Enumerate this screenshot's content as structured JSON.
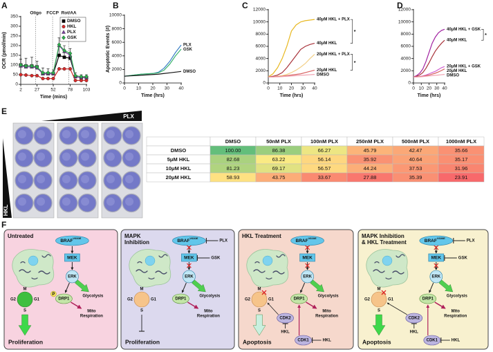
{
  "panel_labels": [
    "A",
    "B",
    "C",
    "D",
    "E",
    "F"
  ],
  "chart_data": [
    {
      "type": "line",
      "xlabel": "Time (mins)",
      "ylabel": "OCR (pmol/min)",
      "x": [
        2,
        10,
        19,
        27,
        36,
        44,
        52,
        61,
        69,
        78,
        86,
        95,
        103
      ],
      "xlim": [
        2,
        103
      ],
      "xticks": [
        2,
        27,
        52,
        78,
        103
      ],
      "ylim": [
        0,
        350
      ],
      "yticks": [
        0,
        50,
        100,
        150,
        200,
        250,
        300,
        350
      ],
      "legend": "top-right",
      "injections": [
        {
          "text": "Oligo",
          "x": 25
        },
        {
          "text": "FCCP",
          "x": 51
        },
        {
          "text": "Rot/AA",
          "x": 76
        }
      ],
      "series": [
        {
          "name": "DMSO",
          "color": "#000000",
          "marker": "square",
          "values": [
            100,
            95,
            95,
            90,
            55,
            55,
            55,
            150,
            140,
            135,
            40,
            35,
            35
          ],
          "errors": [
            30,
            40,
            45,
            30,
            30,
            25,
            20,
            90,
            60,
            50,
            20,
            15,
            15
          ]
        },
        {
          "name": "HKL",
          "color": "#d42a2a",
          "marker": "circle",
          "values": [
            50,
            48,
            45,
            45,
            30,
            30,
            30,
            80,
            80,
            80,
            20,
            20,
            20
          ]
        },
        {
          "name": "PLX",
          "color": "#7b3fa0",
          "marker": "triangle",
          "values": [
            95,
            90,
            90,
            85,
            55,
            55,
            55,
            200,
            170,
            150,
            40,
            35,
            35
          ]
        },
        {
          "name": "GSK",
          "color": "#2fae4e",
          "marker": "diamond",
          "values": [
            100,
            95,
            95,
            90,
            60,
            60,
            60,
            205,
            175,
            160,
            45,
            40,
            40
          ]
        }
      ]
    },
    {
      "type": "line",
      "xlabel": "Time (hrs)",
      "ylabel": "Apoptotic Events (#)",
      "x": [
        0,
        4,
        8,
        12,
        16,
        20,
        24,
        28,
        32,
        36,
        40
      ],
      "xlim": [
        0,
        40
      ],
      "xticks": [
        0,
        10,
        20,
        30,
        40
      ],
      "ylim": [
        0,
        10000
      ],
      "yticks": [
        0,
        2000,
        4000,
        6000,
        8000,
        10000
      ],
      "legend": "line-end",
      "series": [
        {
          "name": "PLX",
          "color": "#3a7fc4",
          "values": [
            1000,
            1100,
            1200,
            1300,
            1350,
            1400,
            1600,
            2200,
            3200,
            4500,
            5600
          ]
        },
        {
          "name": "GSK",
          "color": "#3bb36b",
          "values": [
            1000,
            1100,
            1200,
            1300,
            1350,
            1400,
            1500,
            1900,
            2800,
            4000,
            5000
          ]
        },
        {
          "name": "DMSO",
          "color": "#111111",
          "values": [
            1000,
            1050,
            1100,
            1150,
            1200,
            1250,
            1300,
            1400,
            1500,
            1600,
            1700
          ]
        }
      ]
    },
    {
      "type": "line",
      "xlabel": "Time (hrs)",
      "x": [
        0,
        4,
        8,
        12,
        16,
        20,
        24,
        28,
        32,
        36,
        40
      ],
      "xlim": [
        0,
        40
      ],
      "xticks": [
        0,
        10,
        20,
        30,
        40
      ],
      "ylim": [
        0,
        12000
      ],
      "yticks": [
        0,
        2000,
        4000,
        6000,
        8000,
        10000,
        12000
      ],
      "legend": "line-end",
      "annotations": [
        "*",
        "*"
      ],
      "series": [
        {
          "name": "40μM HKL + PLX",
          "color": "#e8b820",
          "values": [
            1000,
            1500,
            2500,
            4000,
            6000,
            8500,
            9500,
            10000,
            10200,
            10300,
            10400
          ]
        },
        {
          "name": "40μM HKL",
          "color": "#a8323a",
          "values": [
            1000,
            1100,
            1300,
            1700,
            2500,
            3500,
            4500,
            5500,
            6000,
            6300,
            6500
          ]
        },
        {
          "name": "20μM HKL + PLX",
          "color": "#f3cf86",
          "values": [
            1000,
            1000,
            1100,
            1200,
            1400,
            1700,
            2100,
            2600,
            3200,
            4000,
            4700
          ]
        },
        {
          "name": "20μM HKL",
          "color": "#d86060",
          "values": [
            1000,
            1000,
            1050,
            1100,
            1200,
            1300,
            1400,
            1500,
            1700,
            1900,
            2100
          ]
        },
        {
          "name": "DMSO",
          "color": "#f0a0b0",
          "values": [
            1000,
            1000,
            1000,
            1050,
            1100,
            1150,
            1200,
            1250,
            1300,
            1350,
            1400
          ]
        }
      ]
    },
    {
      "type": "line",
      "xlabel": "Time (hrs)",
      "x": [
        0,
        4,
        8,
        12,
        16,
        20,
        24,
        28,
        32,
        36,
        40
      ],
      "xlim": [
        0,
        40
      ],
      "xticks": [
        0,
        10,
        20,
        30,
        40
      ],
      "ylim": [
        0,
        12000
      ],
      "yticks": [
        0,
        2000,
        4000,
        6000,
        8000,
        10000,
        12000
      ],
      "legend": "line-end",
      "annotations": [
        "*"
      ],
      "series": [
        {
          "name": "40μM HKL + GSK",
          "color": "#a020a0",
          "values": [
            1000,
            1200,
            1600,
            2300,
            3500,
            5000,
            6500,
            7500,
            8200,
            8600,
            8800
          ]
        },
        {
          "name": "40μM HKL",
          "color": "#a8323a",
          "values": [
            1000,
            1100,
            1300,
            1700,
            2400,
            3300,
            4300,
            5200,
            5900,
            6500,
            7000
          ]
        },
        {
          "name": "20μM HKL + GSK",
          "color": "#d060d0",
          "values": [
            1000,
            1000,
            1050,
            1150,
            1300,
            1500,
            1700,
            1900,
            2200,
            2500,
            2700
          ]
        },
        {
          "name": "20μM HKL",
          "color": "#d86060",
          "values": [
            1000,
            1000,
            1050,
            1100,
            1200,
            1300,
            1450,
            1600,
            1800,
            2050,
            2300
          ]
        },
        {
          "name": "DMSO",
          "color": "#f0a0b0",
          "values": [
            1000,
            1000,
            1000,
            1050,
            1100,
            1150,
            1200,
            1250,
            1300,
            1350,
            1400
          ]
        }
      ]
    }
  ],
  "plate": {
    "top_label": "PLX",
    "side_label": "HKL"
  },
  "table": {
    "columns": [
      "DMSO",
      "50nM PLX",
      "100nM PLX",
      "250nM PLX",
      "500nM PLX",
      "1000nM PLX"
    ],
    "rows": [
      {
        "label": "DMSO",
        "cells": [
          "100.00",
          "86.38",
          "66.27",
          "45.79",
          "42.47",
          "35.66"
        ]
      },
      {
        "label": "5μM HKL",
        "cells": [
          "82.68",
          "63.22",
          "56.14",
          "35.92",
          "40.64",
          "35.17"
        ]
      },
      {
        "label": "10μM HKL",
        "cells": [
          "81.23",
          "69.17",
          "56.57",
          "44.24",
          "37.53",
          "31.96"
        ]
      },
      {
        "label": "20μM HKL",
        "cells": [
          "58.93",
          "43.75",
          "33.67",
          "27.88",
          "35.39",
          "23.91"
        ]
      }
    ]
  },
  "diagram": {
    "panels": [
      {
        "title": [
          "Untreated"
        ],
        "braf": "BRAF",
        "braf_sup": "V600E",
        "mek": "MEK",
        "erk": "ERK",
        "drp1": "DRP1",
        "p": "P",
        "glycolysis": "Glycolysis",
        "mito": [
          "Mito",
          "Respiration"
        ],
        "cycle": {
          "g2": "G2",
          "m": "M",
          "g1": "G1",
          "s": "S"
        },
        "outcome": "Proliferation"
      },
      {
        "title": [
          "MAPK",
          "Inhibition"
        ],
        "braf": "BRAF",
        "braf_sup": "V600E",
        "braf_inhibitor": "PLX",
        "mek": "MEK",
        "mek_inhibitor": "GSK",
        "erk": "ERK",
        "drp1": "DRP1",
        "glycolysis": "Glycolysis",
        "mito": [
          "Mito",
          "Respiration"
        ],
        "cycle": {
          "g2": "G2",
          "m": "M",
          "g1": "G1",
          "s": "S"
        },
        "outcome": "Proliferation"
      },
      {
        "title": [
          "HKL Treatment"
        ],
        "braf": "BRAF",
        "braf_sup": "V600E",
        "mek": "MEK",
        "erk": "ERK",
        "drp1": "DRP1",
        "glycolysis": "Glycolysis",
        "mito": [
          "Mito",
          "Respiration"
        ],
        "cycle": {
          "g2": "G2",
          "m": "M",
          "g1": "G1",
          "s": "S"
        },
        "cdk2": "CDK2",
        "cdk2_inhibitor": "HKL",
        "cdk1": "CDK1",
        "cdk1_inhibitor": "HKL",
        "outcome": "Apoptosis"
      },
      {
        "title": [
          "MAPK Inhibition",
          "& HKL Treatment"
        ],
        "braf": "BRAF",
        "braf_sup": "V600E",
        "braf_inhibitor": "PLX",
        "mek": "MEK",
        "mek_inhibitor": "GSK",
        "erk": "ERK",
        "drp1": "DRP1",
        "glycolysis": "Glycolysis",
        "mito": [
          "Mito",
          "Respiration"
        ],
        "cycle": {
          "g2": "G2",
          "m": "M",
          "g1": "G1",
          "s": "S"
        },
        "cdk2": "CDK2",
        "cdk2_inhibitor": "HKL",
        "cdk1": "CDK1",
        "cdk1_inhibitor": "HKL",
        "outcome": "Apoptosis"
      }
    ]
  }
}
